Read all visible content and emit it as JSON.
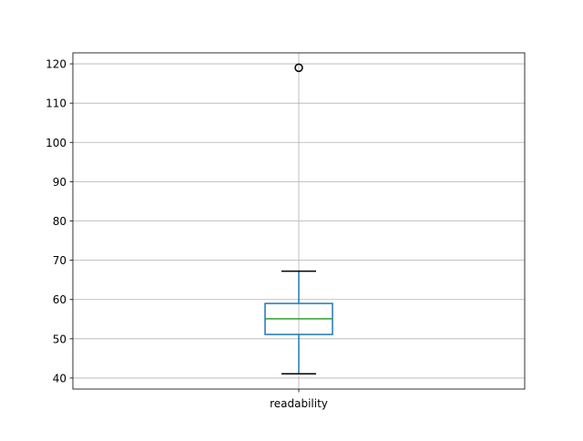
{
  "chart_data": {
    "type": "box",
    "title": "",
    "xlabel": "",
    "ylabel": "",
    "categories": [
      "readability"
    ],
    "boxes": [
      {
        "name": "readability",
        "whisker_low": 41.1,
        "q1": 51.1,
        "median": 55.1,
        "q3": 59.0,
        "whisker_high": 67.2,
        "outliers": [
          119
        ]
      }
    ],
    "ylim": [
      37.2,
      122.8
    ],
    "yticks": [
      40,
      50,
      60,
      70,
      80,
      90,
      100,
      110,
      120
    ],
    "grid": true,
    "colors": {
      "box": "#1f77b4",
      "median": "#2ca02c",
      "caps": "#000000",
      "grid": "#b0b0b0",
      "outlier": "#000000"
    }
  }
}
